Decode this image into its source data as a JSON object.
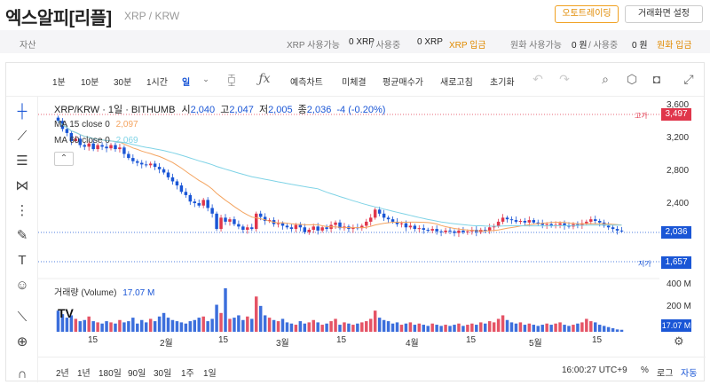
{
  "header": {
    "title": "엑스알피[리플]",
    "subtitle": "XRP / KRW",
    "auto_trading": "오토트레이딩",
    "screen_settings": "거래화면 설정"
  },
  "assets": {
    "label": "자산",
    "xrp_available_label": "XRP 사용가능",
    "xrp_available": "0 XRP",
    "xrp_in_use_label": "/ 사용중",
    "xrp_in_use": "0 XRP",
    "xrp_deposit": "XRP 입금",
    "krw_available_label": "원화 사용가능",
    "krw_available": "0 원",
    "krw_in_use_label": "/ 사용중",
    "krw_in_use": "0 원",
    "krw_deposit": "원화 입금"
  },
  "toolbar": {
    "intervals": [
      "1분",
      "10분",
      "30분",
      "1시간",
      "일"
    ],
    "active_interval": "일",
    "actions": [
      "예측차트",
      "미체결",
      "평균매수가",
      "새로고침",
      "초기화"
    ],
    "icons": [
      "candle-type-icon",
      "indicator-icon",
      "undo-icon",
      "redo-icon",
      "search-chart-icon",
      "settings-hex-icon",
      "camera-icon",
      "fullscreen-icon"
    ]
  },
  "sidebar": {
    "tools": [
      "crosshair-icon",
      "trendline-icon",
      "horizontal-lines-icon",
      "pattern-icon",
      "fib-icon",
      "brush-icon",
      "text-icon",
      "emoji-icon",
      "ruler-icon",
      "zoom-in-icon",
      "magnet-icon"
    ]
  },
  "legend": {
    "main": "XRP/KRW · 1일 · BITHUMB",
    "o_label": "시",
    "o": "2,040",
    "h_label": "고",
    "h": "2,047",
    "l_label": "저",
    "l": "2,005",
    "c_label": "종",
    "c": "2,036",
    "change": "-4 (-0.20%)",
    "ma15_label": "MA 15 close 0",
    "ma15": "2,097",
    "ma60_label": "MA 60 close 0",
    "ma60": "2,069",
    "volume_label": "거래량 (Volume)",
    "volume": "17.07 M"
  },
  "price_axis": {
    "ticks": [
      "3,600",
      "3,200",
      "2,800",
      "2,400"
    ],
    "high_label": "고가",
    "high": "3,497",
    "current": "2,036",
    "low_label": "저가",
    "low": "1,657",
    "vol_ticks": [
      "400 M",
      "200 M"
    ],
    "vol_current": "17.07 M"
  },
  "time_axis": [
    "15",
    "2월",
    "15",
    "3월",
    "15",
    "4월",
    "15",
    "5월",
    "15"
  ],
  "bottom": {
    "ranges": [
      "2년",
      "1년",
      "180일",
      "90일",
      "30일",
      "1주",
      "1일"
    ],
    "clock": "16:00:27 UTC+9",
    "percent": "%",
    "log": "로그",
    "auto": "자동"
  },
  "colors": {
    "up": "#e0364b",
    "down": "#1a56d6",
    "ma15": "#f4a460",
    "ma60": "#7fd3e6",
    "accent": "#e08a00"
  },
  "chart_data": {
    "type": "candlestick",
    "ylim": [
      1500,
      3700
    ],
    "closes": [
      3400,
      3300,
      3250,
      3150,
      3180,
      3100,
      3080,
      3120,
      3050,
      3100,
      3080,
      3060,
      3100,
      3050,
      3070,
      2990,
      2940,
      2900,
      2880,
      2860,
      2850,
      2870,
      2830,
      2800,
      2760,
      2700,
      2650,
      2600,
      2520,
      2480,
      2400,
      2380,
      2350,
      2420,
      2320,
      2250,
      2060,
      2200,
      2150,
      2180,
      2120,
      2090,
      2050,
      2080,
      2060,
      2250,
      2210,
      2160,
      2170,
      2120,
      2130,
      2100,
      2080,
      2060,
      2110,
      2080,
      2020,
      2050,
      2090,
      2040,
      2080,
      2060,
      2110,
      2140,
      2070,
      2090,
      2060,
      2080,
      2070,
      2100,
      2150,
      2200,
      2300,
      2250,
      2200,
      2180,
      2150,
      2120,
      2130,
      2080,
      2100,
      2060,
      2070,
      2050,
      2040,
      2060,
      2030,
      2020,
      2040,
      2030,
      2010,
      2040,
      2020,
      2030,
      2050,
      2020,
      2050,
      2040,
      2080,
      2100,
      2150,
      2200,
      2180,
      2170,
      2150,
      2160,
      2140,
      2170,
      2140,
      2130,
      2110,
      2120,
      2100,
      2110,
      2130,
      2100,
      2090,
      2120,
      2110,
      2130,
      2150,
      2180,
      2160,
      2140,
      2100,
      2080,
      2060,
      2040,
      2036
    ],
    "vol_values_m": [
      180,
      150,
      120,
      140,
      110,
      90,
      100,
      130,
      90,
      80,
      70,
      90,
      80,
      70,
      100,
      80,
      90,
      120,
      70,
      100,
      80,
      110,
      90,
      130,
      160,
      120,
      100,
      90,
      80,
      70,
      90,
      100,
      120,
      130,
      90,
      110,
      230,
      160,
      370,
      110,
      120,
      140,
      100,
      130,
      110,
      300,
      220,
      140,
      120,
      100,
      90,
      110,
      80,
      70,
      60,
      90,
      70,
      80,
      100,
      80,
      60,
      70,
      90,
      110,
      60,
      80,
      70,
      60,
      70,
      80,
      90,
      110,
      180,
      120,
      100,
      90,
      70,
      80,
      60,
      70,
      80,
      60,
      70,
      60,
      50,
      70,
      60,
      50,
      60,
      50,
      60,
      70,
      50,
      60,
      70,
      60,
      80,
      70,
      90,
      80,
      110,
      140,
      100,
      80,
      70,
      80,
      60,
      70,
      60,
      50,
      60,
      70,
      60,
      70,
      80,
      60,
      50,
      60,
      70,
      80,
      110,
      90,
      80,
      60,
      50,
      40,
      30,
      20,
      17
    ]
  }
}
